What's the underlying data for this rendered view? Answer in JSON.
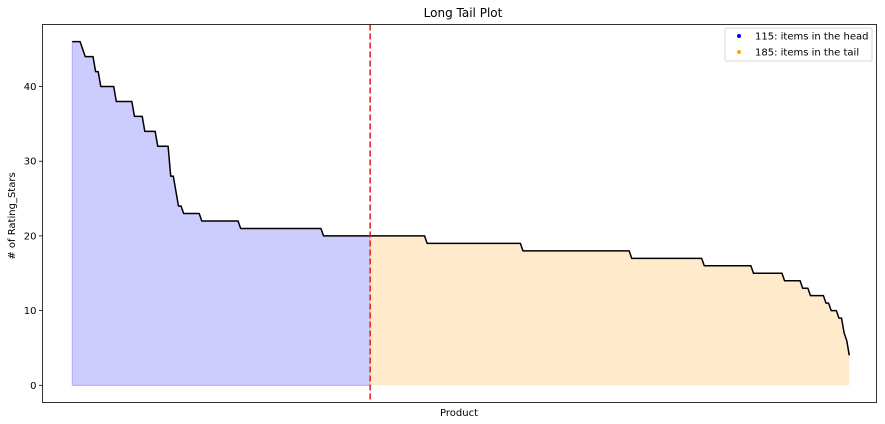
{
  "chart_data": {
    "type": "area",
    "title": "Long Tail Plot",
    "xlabel": "Product",
    "ylabel": "# of Rating_Stars",
    "ylim": [
      -2.3,
      48.3
    ],
    "xlim": [
      -11.5,
      310.5
    ],
    "yticks": [
      0,
      10,
      20,
      30,
      40
    ],
    "grid": false,
    "legend_position": "top-right",
    "cutoff_index": 115,
    "legend": [
      {
        "label": "115: items in the head",
        "color": "#0000ff"
      },
      {
        "label": "185: items in the tail",
        "color": "#ffa500"
      }
    ],
    "colors": {
      "head_fill": "#ccccff",
      "head_edge": "#aaaaff",
      "tail_fill": "#ffebcc",
      "line": "#000000",
      "cutoff_line": "#e31a1c"
    },
    "steps": [
      [
        0,
        46
      ],
      [
        3,
        46
      ],
      [
        5,
        44
      ],
      [
        8,
        44
      ],
      [
        9,
        42
      ],
      [
        10,
        42
      ],
      [
        11,
        40
      ],
      [
        16,
        40
      ],
      [
        17,
        38
      ],
      [
        23,
        38
      ],
      [
        24,
        36
      ],
      [
        27,
        36
      ],
      [
        28,
        34
      ],
      [
        32,
        34
      ],
      [
        33,
        32
      ],
      [
        37,
        32
      ],
      [
        38,
        28
      ],
      [
        39,
        28
      ],
      [
        40,
        26
      ],
      [
        41,
        24
      ],
      [
        42,
        24
      ],
      [
        43,
        23
      ],
      [
        49,
        23
      ],
      [
        50,
        22
      ],
      [
        64,
        22
      ],
      [
        65,
        21
      ],
      [
        96,
        21
      ],
      [
        97,
        20
      ],
      [
        136,
        20
      ],
      [
        137,
        19
      ],
      [
        173,
        19
      ],
      [
        174,
        18
      ],
      [
        215,
        18
      ],
      [
        216,
        17
      ],
      [
        243,
        17
      ],
      [
        244,
        16
      ],
      [
        262,
        16
      ],
      [
        263,
        15
      ],
      [
        274,
        15
      ],
      [
        275,
        14
      ],
      [
        281,
        14
      ],
      [
        282,
        13
      ],
      [
        284,
        13
      ],
      [
        285,
        12
      ],
      [
        290,
        12
      ],
      [
        291,
        11
      ],
      [
        292,
        11
      ],
      [
        293,
        10
      ],
      [
        295,
        10
      ],
      [
        296,
        9
      ],
      [
        297,
        9
      ],
      [
        298,
        7
      ],
      [
        299,
        6
      ],
      [
        300,
        4
      ]
    ]
  }
}
